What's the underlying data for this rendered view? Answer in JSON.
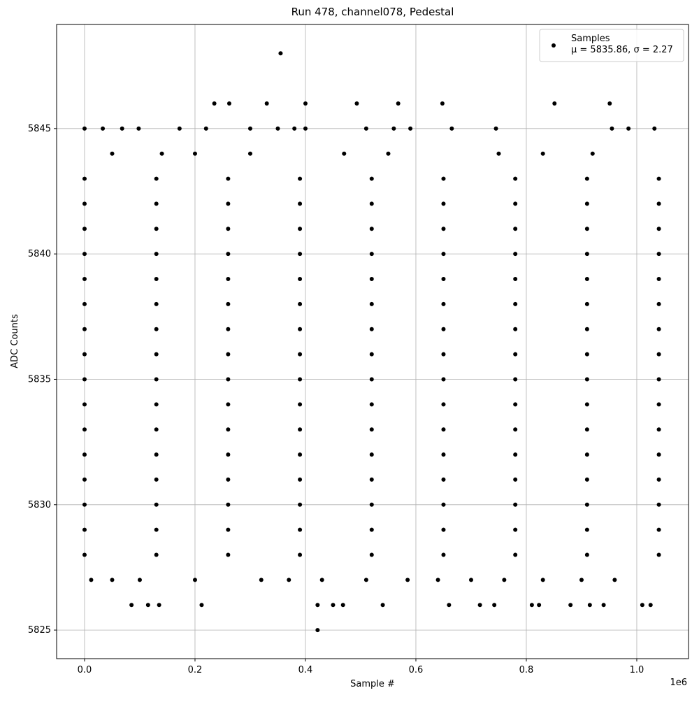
{
  "chart_data": {
    "type": "scatter",
    "title": "Run 478, channel078, Pedestal",
    "x_label": "Sample #",
    "y_label": "ADC Counts",
    "x_offset_label": "1e6",
    "xlim": [
      -50600,
      1093700
    ],
    "ylim": [
      5823.86,
      5849.15
    ],
    "xticks": [
      {
        "value": 0,
        "label": "0.0"
      },
      {
        "value": 200000,
        "label": "0.2"
      },
      {
        "value": 400000,
        "label": "0.4"
      },
      {
        "value": 600000,
        "label": "0.6"
      },
      {
        "value": 800000,
        "label": "0.8"
      },
      {
        "value": 1000000,
        "label": "1.0"
      }
    ],
    "yticks": [
      5825,
      5830,
      5835,
      5840,
      5845
    ],
    "grid": true,
    "legend": "upper right",
    "x": [
      0,
      130000,
      260000,
      390000,
      520000,
      650000,
      780000,
      910000,
      1040000,
      0,
      130000,
      260000,
      390000,
      520000,
      650000,
      780000,
      910000,
      1040000,
      0,
      130000,
      260000,
      390000,
      520000,
      650000,
      780000,
      910000,
      1040000,
      0,
      130000,
      260000,
      390000,
      520000,
      650000,
      780000,
      910000,
      1040000,
      0,
      130000,
      260000,
      390000,
      520000,
      650000,
      780000,
      910000,
      1040000,
      0,
      130000,
      260000,
      390000,
      520000,
      650000,
      780000,
      910000,
      1040000,
      0,
      130000,
      260000,
      390000,
      520000,
      650000,
      780000,
      910000,
      1040000,
      0,
      130000,
      260000,
      390000,
      520000,
      650000,
      780000,
      910000,
      1040000,
      0,
      130000,
      260000,
      390000,
      520000,
      650000,
      780000,
      910000,
      1040000,
      0,
      130000,
      260000,
      390000,
      520000,
      650000,
      780000,
      910000,
      1040000,
      0,
      130000,
      260000,
      390000,
      520000,
      650000,
      780000,
      910000,
      1040000,
      0,
      130000,
      260000,
      390000,
      520000,
      650000,
      780000,
      910000,
      1040000,
      0,
      130000,
      260000,
      390000,
      520000,
      650000,
      780000,
      910000,
      1040000,
      0,
      130000,
      260000,
      390000,
      520000,
      650000,
      780000,
      910000,
      1040000,
      0,
      130000,
      260000,
      390000,
      520000,
      650000,
      780000,
      910000,
      1040000,
      0,
      130000,
      260000,
      390000,
      520000,
      650000,
      780000,
      910000,
      1040000,
      355000,
      235000,
      262000,
      330000,
      400000,
      493000,
      568000,
      648000,
      851000,
      951000,
      0,
      33000,
      68000,
      98000,
      172000,
      220000,
      300000,
      350000,
      380000,
      400000,
      510000,
      560000,
      590000,
      665000,
      745000,
      955000,
      985000,
      1032000,
      50000,
      140000,
      200000,
      300000,
      470000,
      550000,
      750000,
      830000,
      920000,
      12000,
      50000,
      100000,
      200000,
      320000,
      370000,
      430000,
      510000,
      585000,
      640000,
      700000,
      760000,
      830000,
      900000,
      960000,
      85000,
      115000,
      135000,
      212000,
      422000,
      450000,
      468000,
      540000,
      660000,
      716000,
      742000,
      810000,
      823000,
      880000,
      915000,
      940000,
      1010000,
      1025000,
      422000
    ],
    "series": [
      {
        "name": "Samples",
        "stats_label": "μ = 5835.86, σ = 2.27",
        "color": "#000000",
        "values": [
          5828,
          5828,
          5828,
          5828,
          5828,
          5828,
          5828,
          5828,
          5828,
          5829,
          5829,
          5829,
          5829,
          5829,
          5829,
          5829,
          5829,
          5829,
          5830,
          5830,
          5830,
          5830,
          5830,
          5830,
          5830,
          5830,
          5830,
          5831,
          5831,
          5831,
          5831,
          5831,
          5831,
          5831,
          5831,
          5831,
          5832,
          5832,
          5832,
          5832,
          5832,
          5832,
          5832,
          5832,
          5832,
          5833,
          5833,
          5833,
          5833,
          5833,
          5833,
          5833,
          5833,
          5833,
          5834,
          5834,
          5834,
          5834,
          5834,
          5834,
          5834,
          5834,
          5834,
          5835,
          5835,
          5835,
          5835,
          5835,
          5835,
          5835,
          5835,
          5835,
          5836,
          5836,
          5836,
          5836,
          5836,
          5836,
          5836,
          5836,
          5836,
          5837,
          5837,
          5837,
          5837,
          5837,
          5837,
          5837,
          5837,
          5837,
          5838,
          5838,
          5838,
          5838,
          5838,
          5838,
          5838,
          5838,
          5838,
          5839,
          5839,
          5839,
          5839,
          5839,
          5839,
          5839,
          5839,
          5839,
          5840,
          5840,
          5840,
          5840,
          5840,
          5840,
          5840,
          5840,
          5840,
          5841,
          5841,
          5841,
          5841,
          5841,
          5841,
          5841,
          5841,
          5841,
          5842,
          5842,
          5842,
          5842,
          5842,
          5842,
          5842,
          5842,
          5842,
          5843,
          5843,
          5843,
          5843,
          5843,
          5843,
          5843,
          5843,
          5843,
          5848,
          5846,
          5846,
          5846,
          5846,
          5846,
          5846,
          5846,
          5846,
          5846,
          5845,
          5845,
          5845,
          5845,
          5845,
          5845,
          5845,
          5845,
          5845,
          5845,
          5845,
          5845,
          5845,
          5845,
          5845,
          5845,
          5845,
          5845,
          5844,
          5844,
          5844,
          5844,
          5844,
          5844,
          5844,
          5844,
          5844,
          5827,
          5827,
          5827,
          5827,
          5827,
          5827,
          5827,
          5827,
          5827,
          5827,
          5827,
          5827,
          5827,
          5827,
          5827,
          5826,
          5826,
          5826,
          5826,
          5826,
          5826,
          5826,
          5826,
          5826,
          5826,
          5826,
          5826,
          5826,
          5826,
          5826,
          5826,
          5826,
          5826,
          5825
        ]
      }
    ]
  }
}
